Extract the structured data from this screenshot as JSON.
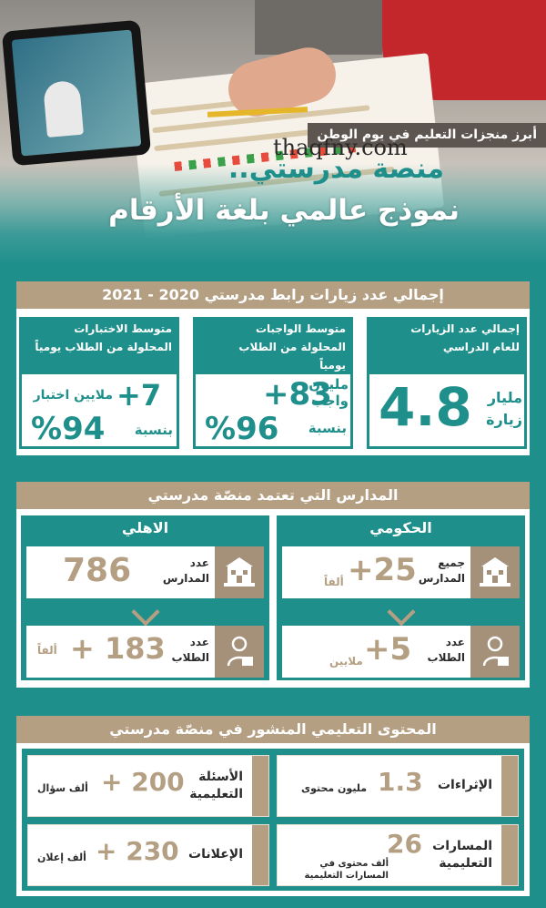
{
  "header": {
    "tag": "أبرز منجزات التعليم في يوم الوطن",
    "watermark": "thaqfny.com",
    "title_line1": "منصة مدرستي..",
    "title_line2": "نموذج عالمي بلغة الأرقام"
  },
  "visits": {
    "title": "إجمالي عدد زيارات رابط مدرستي 2020 - 2021",
    "items": [
      {
        "label": "إجمالي عدد الزيارات للعام الدراسي",
        "value": "4.8",
        "unit": "مليار زيارة"
      },
      {
        "label": "متوسط الواجبات المحلولة من الطلاب يومياً",
        "value": "+83",
        "unit": "مليون واجب",
        "ratio_label": "بنسبة",
        "ratio": "%96"
      },
      {
        "label": "متوسط الاختبارات المحلولة من الطلاب يومياً",
        "value": "+7",
        "unit": "ملايين اختبار",
        "ratio_label": "بنسبة",
        "ratio": "%94"
      }
    ]
  },
  "schools": {
    "title": "المدارس التي تعتمد منصّة مدرستي",
    "government": {
      "heading": "الحكومي",
      "schools_label": "جميع المدارس",
      "schools_value": "+25",
      "schools_unit": "ألفاً",
      "students_label": "عدد الطلاب",
      "students_value": "+5",
      "students_unit": "ملايين"
    },
    "private": {
      "heading": "الاهلي",
      "schools_label": "عدد المدارس",
      "schools_value": "786",
      "students_label": "عدد الطلاب",
      "students_value": "+ 183",
      "students_unit": "ألفاً"
    }
  },
  "content": {
    "title": "المحتوى التعليمي المنشور في منصّة مدرستي",
    "items": [
      {
        "label": "الإثراءات",
        "value": "1.3",
        "unit": "مليون محتوى"
      },
      {
        "label": "الأسئلة التعليمية",
        "value": "+ 200",
        "unit": "ألف سؤال"
      },
      {
        "label": "المسارات التعليمية",
        "value": "26",
        "unit": "ألف محتوى في المسارات التعليمية"
      },
      {
        "label": "الإعلانات",
        "value": "+ 230",
        "unit": "ألف إعلان"
      }
    ]
  },
  "colors": {
    "teal": "#1f8f8c",
    "gold": "#b49f82",
    "dark": "#5d554f"
  },
  "icons": [
    "school-icon",
    "student-icon",
    "chevron-down-icon"
  ]
}
